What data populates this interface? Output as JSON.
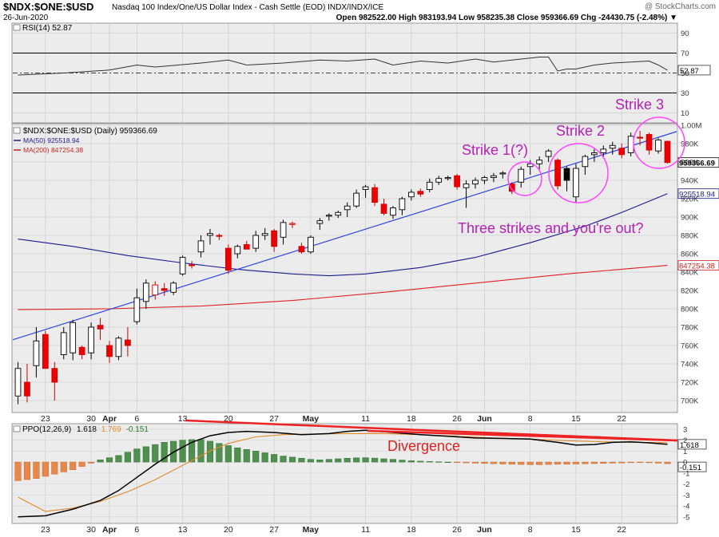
{
  "header": {
    "symbol": "$NDX:$ONE:$USD",
    "description": "Nasdaq 100 Index/One/US Dollar Index - Cash Settle (EOD)  INDX/INDX/ICE",
    "date": "26-Jun-2020",
    "watermark": "@ StockCharts.com",
    "quote": "Open 982522.00  High 983193.94  Low 958235.38  Close 959366.69  Chg -24430.75 (-2.48%) ▼"
  },
  "rsi_panel": {
    "label": "RSI(14) 52.87",
    "levels": [
      "90",
      "70",
      "50",
      "30",
      "10"
    ],
    "current": "52.87"
  },
  "price_panel": {
    "legend": [
      {
        "text": "$NDX:$ONE:$USD (Daily) 959366.69",
        "color": "#000000"
      },
      {
        "text": "MA(50) 925518.94",
        "color": "#1a1a8c"
      },
      {
        "text": "MA(200) 847254.38",
        "color": "#cc2222"
      }
    ],
    "y_ticks": [
      "1.00M",
      "980K",
      "960K",
      "940K",
      "920K",
      "900K",
      "880K",
      "860K",
      "840K",
      "820K",
      "800K",
      "780K",
      "760K",
      "740K",
      "720K",
      "700K"
    ],
    "tags": [
      {
        "text": "959366.69",
        "color": "#000000"
      },
      {
        "text": "925518.94",
        "color": "#1a1a8c"
      },
      {
        "text": "847254.38",
        "color": "#cc2222"
      }
    ],
    "annotations": {
      "strike1": "Strike 1(?)",
      "strike2": "Strike 2",
      "strike3": "Strike 3",
      "three_strikes": "Three strikes and you're out?"
    },
    "annotation_color": "#b520b5"
  },
  "ppo_panel": {
    "label": "PPO(12,26,9)",
    "ppo_value": "1.618",
    "signal_value": "1.769",
    "hist_value": "-0.151",
    "y_ticks": [
      "3",
      "2",
      "1",
      "0",
      "-1",
      "-2",
      "-3",
      "-4",
      "-5"
    ],
    "tags": [
      "1.618",
      "-0.151"
    ],
    "divergence": "Divergence"
  },
  "x_labels": [
    {
      "text": "23",
      "i": 3,
      "bold": false
    },
    {
      "text": "30",
      "i": 8,
      "bold": false
    },
    {
      "text": "Apr",
      "i": 10,
      "bold": true
    },
    {
      "text": "6",
      "i": 13,
      "bold": false
    },
    {
      "text": "13",
      "i": 18,
      "bold": false
    },
    {
      "text": "20",
      "i": 23,
      "bold": false
    },
    {
      "text": "27",
      "i": 28,
      "bold": false
    },
    {
      "text": "May",
      "i": 32,
      "bold": true
    },
    {
      "text": "11",
      "i": 38,
      "bold": false
    },
    {
      "text": "18",
      "i": 43,
      "bold": false
    },
    {
      "text": "26",
      "i": 48,
      "bold": false
    },
    {
      "text": "Jun",
      "i": 51,
      "bold": true
    },
    {
      "text": "8",
      "i": 56,
      "bold": false
    },
    {
      "text": "15",
      "i": 61,
      "bold": false
    },
    {
      "text": "22",
      "i": 66,
      "bold": false
    }
  ],
  "chart_data": {
    "type": "candlestick",
    "price_ylim": [
      690000,
      1005000
    ],
    "candles": [
      {
        "o": 705,
        "h": 742,
        "l": 696,
        "c": 735
      },
      {
        "o": 720,
        "h": 740,
        "l": 698,
        "c": 705
      },
      {
        "o": 738,
        "h": 780,
        "l": 725,
        "c": 765
      },
      {
        "o": 772,
        "h": 776,
        "l": 735,
        "c": 735
      },
      {
        "o": 735,
        "h": 742,
        "l": 700,
        "c": 720
      },
      {
        "o": 750,
        "h": 780,
        "l": 745,
        "c": 774
      },
      {
        "o": 752,
        "h": 788,
        "l": 744,
        "c": 785
      },
      {
        "o": 758,
        "h": 760,
        "l": 745,
        "c": 750
      },
      {
        "o": 752,
        "h": 785,
        "l": 745,
        "c": 780
      },
      {
        "o": 782,
        "h": 790,
        "l": 766,
        "c": 778
      },
      {
        "o": 760,
        "h": 765,
        "l": 741,
        "c": 748
      },
      {
        "o": 748,
        "h": 770,
        "l": 744,
        "c": 768
      },
      {
        "o": 766,
        "h": 780,
        "l": 748,
        "c": 760
      },
      {
        "o": 786,
        "h": 822,
        "l": 783,
        "c": 812
      },
      {
        "o": 808,
        "h": 832,
        "l": 800,
        "c": 828
      },
      {
        "o": 815,
        "h": 830,
        "l": 810,
        "c": 826
      },
      {
        "o": 822,
        "h": 828,
        "l": 814,
        "c": 820
      },
      {
        "o": 818,
        "h": 830,
        "l": 815,
        "c": 828
      },
      {
        "o": 838,
        "h": 858,
        "l": 836,
        "c": 856
      },
      {
        "o": 848,
        "h": 852,
        "l": 844,
        "c": 847
      },
      {
        "o": 862,
        "h": 880,
        "l": 856,
        "c": 874
      },
      {
        "o": 880,
        "h": 887,
        "l": 870,
        "c": 882
      },
      {
        "o": 880,
        "h": 882,
        "l": 875,
        "c": 879
      },
      {
        "o": 866,
        "h": 870,
        "l": 838,
        "c": 842
      },
      {
        "o": 860,
        "h": 870,
        "l": 855,
        "c": 868
      },
      {
        "o": 870,
        "h": 874,
        "l": 866,
        "c": 865
      },
      {
        "o": 866,
        "h": 885,
        "l": 862,
        "c": 880
      },
      {
        "o": 880,
        "h": 888,
        "l": 875,
        "c": 882
      },
      {
        "o": 885,
        "h": 887,
        "l": 862,
        "c": 868
      },
      {
        "o": 878,
        "h": 897,
        "l": 870,
        "c": 894
      },
      {
        "o": 892,
        "h": 895,
        "l": 888,
        "c": 893
      },
      {
        "o": 868,
        "h": 872,
        "l": 860,
        "c": 862
      },
      {
        "o": 862,
        "h": 880,
        "l": 860,
        "c": 878
      },
      {
        "o": 893,
        "h": 899,
        "l": 886,
        "c": 896
      },
      {
        "o": 901,
        "h": 904,
        "l": 896,
        "c": 902
      },
      {
        "o": 902,
        "h": 907,
        "l": 899,
        "c": 905
      },
      {
        "o": 908,
        "h": 916,
        "l": 900,
        "c": 912
      },
      {
        "o": 912,
        "h": 930,
        "l": 910,
        "c": 926
      },
      {
        "o": 930,
        "h": 935,
        "l": 921,
        "c": 933
      },
      {
        "o": 932,
        "h": 936,
        "l": 912,
        "c": 916
      },
      {
        "o": 914,
        "h": 920,
        "l": 902,
        "c": 904
      },
      {
        "o": 902,
        "h": 912,
        "l": 898,
        "c": 910
      },
      {
        "o": 908,
        "h": 922,
        "l": 902,
        "c": 920
      },
      {
        "o": 922,
        "h": 930,
        "l": 918,
        "c": 927
      },
      {
        "o": 928,
        "h": 931,
        "l": 922,
        "c": 925
      },
      {
        "o": 930,
        "h": 942,
        "l": 927,
        "c": 938
      },
      {
        "o": 938,
        "h": 945,
        "l": 935,
        "c": 942
      },
      {
        "o": 942,
        "h": 945,
        "l": 940,
        "c": 943
      },
      {
        "o": 945,
        "h": 947,
        "l": 930,
        "c": 933
      },
      {
        "o": 932,
        "h": 940,
        "l": 910,
        "c": 936
      },
      {
        "o": 936,
        "h": 943,
        "l": 931,
        "c": 940
      },
      {
        "o": 940,
        "h": 945,
        "l": 936,
        "c": 943
      },
      {
        "o": 943,
        "h": 948,
        "l": 938,
        "c": 945
      },
      {
        "o": 947,
        "h": 950,
        "l": 942,
        "c": 948
      },
      {
        "o": 936,
        "h": 938,
        "l": 925,
        "c": 928
      },
      {
        "o": 938,
        "h": 955,
        "l": 932,
        "c": 952
      },
      {
        "o": 955,
        "h": 962,
        "l": 946,
        "c": 958
      },
      {
        "o": 958,
        "h": 966,
        "l": 952,
        "c": 962
      },
      {
        "o": 966,
        "h": 974,
        "l": 960,
        "c": 972
      },
      {
        "o": 962,
        "h": 964,
        "l": 930,
        "c": 934
      },
      {
        "o": 953,
        "h": 955,
        "l": 928,
        "c": 940
      },
      {
        "o": 922,
        "h": 958,
        "l": 916,
        "c": 953
      },
      {
        "o": 955,
        "h": 968,
        "l": 946,
        "c": 966
      },
      {
        "o": 968,
        "h": 974,
        "l": 960,
        "c": 970
      },
      {
        "o": 970,
        "h": 978,
        "l": 964,
        "c": 974
      },
      {
        "o": 975,
        "h": 982,
        "l": 968,
        "c": 978
      },
      {
        "o": 975,
        "h": 980,
        "l": 964,
        "c": 968
      },
      {
        "o": 970,
        "h": 992,
        "l": 966,
        "c": 988
      },
      {
        "o": 987,
        "h": 994,
        "l": 978,
        "c": 986
      },
      {
        "o": 990,
        "h": 992,
        "l": 968,
        "c": 973
      },
      {
        "o": 972,
        "h": 986,
        "l": 969,
        "c": 984
      },
      {
        "o": 982.5,
        "h": 983.2,
        "l": 958.2,
        "c": 959.4
      }
    ],
    "ma50": [
      [
        0,
        876
      ],
      [
        6,
        868
      ],
      [
        12,
        858
      ],
      [
        18,
        850
      ],
      [
        24,
        843
      ],
      [
        30,
        838
      ],
      [
        34,
        836
      ],
      [
        38,
        838
      ],
      [
        44,
        845
      ],
      [
        50,
        856
      ],
      [
        56,
        872
      ],
      [
        62,
        890
      ],
      [
        66,
        905
      ],
      [
        71,
        925.5
      ]
    ],
    "ma200": [
      [
        0,
        799
      ],
      [
        10,
        800
      ],
      [
        20,
        803
      ],
      [
        30,
        809
      ],
      [
        40,
        818
      ],
      [
        50,
        828
      ],
      [
        60,
        838
      ],
      [
        71,
        847.3
      ]
    ],
    "trendline": [
      [
        0,
        768
      ],
      [
        71,
        990
      ]
    ],
    "rsi": [
      [
        0,
        48
      ],
      [
        5,
        50
      ],
      [
        10,
        53
      ],
      [
        13,
        58
      ],
      [
        15,
        56
      ],
      [
        20,
        60
      ],
      [
        23,
        63
      ],
      [
        25,
        58
      ],
      [
        29,
        60
      ],
      [
        33,
        63
      ],
      [
        36,
        62
      ],
      [
        39,
        64
      ],
      [
        41,
        58
      ],
      [
        44,
        62
      ],
      [
        47,
        60
      ],
      [
        50,
        64
      ],
      [
        52,
        61
      ],
      [
        55,
        64
      ],
      [
        57,
        66
      ],
      [
        58,
        66
      ],
      [
        59,
        52
      ],
      [
        60,
        54
      ],
      [
        61,
        54
      ],
      [
        63,
        58
      ],
      [
        65,
        60
      ],
      [
        67,
        61
      ],
      [
        69,
        62
      ],
      [
        70,
        58
      ],
      [
        71,
        52.87
      ]
    ],
    "ppo": [
      [
        0,
        -5
      ],
      [
        3,
        -4.9
      ],
      [
        6,
        -4.3
      ],
      [
        9,
        -3.5
      ],
      [
        11,
        -2.6
      ],
      [
        13,
        -1.4
      ],
      [
        15,
        -0.2
      ],
      [
        17,
        0.9
      ],
      [
        19,
        1.8
      ],
      [
        21,
        2.4
      ],
      [
        23,
        2.7
      ],
      [
        25,
        2.8
      ],
      [
        28,
        2.7
      ],
      [
        31,
        2.5
      ],
      [
        34,
        2.6
      ],
      [
        36,
        2.8
      ],
      [
        38,
        2.9
      ],
      [
        41,
        2.7
      ],
      [
        44,
        2.5
      ],
      [
        47,
        2.35
      ],
      [
        50,
        2.2
      ],
      [
        53,
        2.15
      ],
      [
        56,
        2.1
      ],
      [
        59,
        1.8
      ],
      [
        61,
        1.55
      ],
      [
        63,
        1.6
      ],
      [
        65,
        1.8
      ],
      [
        67,
        1.85
      ],
      [
        69,
        1.75
      ],
      [
        71,
        1.618
      ]
    ],
    "ppo_signal": [
      [
        0,
        -3.2
      ],
      [
        3,
        -4.5
      ],
      [
        6,
        -4.2
      ],
      [
        9,
        -3.6
      ],
      [
        12,
        -2.7
      ],
      [
        15,
        -1.6
      ],
      [
        18,
        -0.3
      ],
      [
        21,
        1.0
      ],
      [
        23,
        1.7
      ],
      [
        26,
        2.3
      ],
      [
        29,
        2.5
      ],
      [
        32,
        2.55
      ],
      [
        36,
        2.6
      ],
      [
        40,
        2.6
      ],
      [
        44,
        2.5
      ],
      [
        48,
        2.35
      ],
      [
        52,
        2.2
      ],
      [
        56,
        2.1
      ],
      [
        60,
        1.95
      ],
      [
        64,
        1.85
      ],
      [
        68,
        1.8
      ],
      [
        71,
        1.769
      ]
    ],
    "ppo_hist": [
      -1.7,
      -1.6,
      -1.5,
      -1.3,
      -1.1,
      -0.9,
      -0.7,
      -0.4,
      -0.1,
      0.2,
      0.4,
      0.6,
      0.9,
      1.2,
      1.4,
      1.6,
      1.8,
      1.9,
      2.0,
      2.05,
      2.05,
      1.9,
      1.7,
      1.5,
      1.3,
      1.15,
      1.0,
      0.85,
      0.7,
      0.55,
      0.45,
      0.35,
      0.25,
      0.2,
      0.25,
      0.3,
      0.35,
      0.38,
      0.4,
      0.36,
      0.3,
      0.25,
      0.18,
      0.12,
      0.08,
      0.05,
      0.02,
      0.0,
      -0.04,
      -0.07,
      -0.1,
      -0.13,
      -0.15,
      -0.18,
      -0.2,
      -0.22,
      -0.24,
      -0.24,
      -0.22,
      -0.2,
      -0.2,
      -0.18,
      -0.16,
      -0.14,
      -0.12,
      -0.1,
      -0.08,
      -0.06,
      -0.05,
      -0.06,
      -0.1,
      -0.151
    ],
    "ppo_ylim": [
      -5.6,
      3.5
    ],
    "rsi_ylim": [
      0,
      100
    ]
  }
}
